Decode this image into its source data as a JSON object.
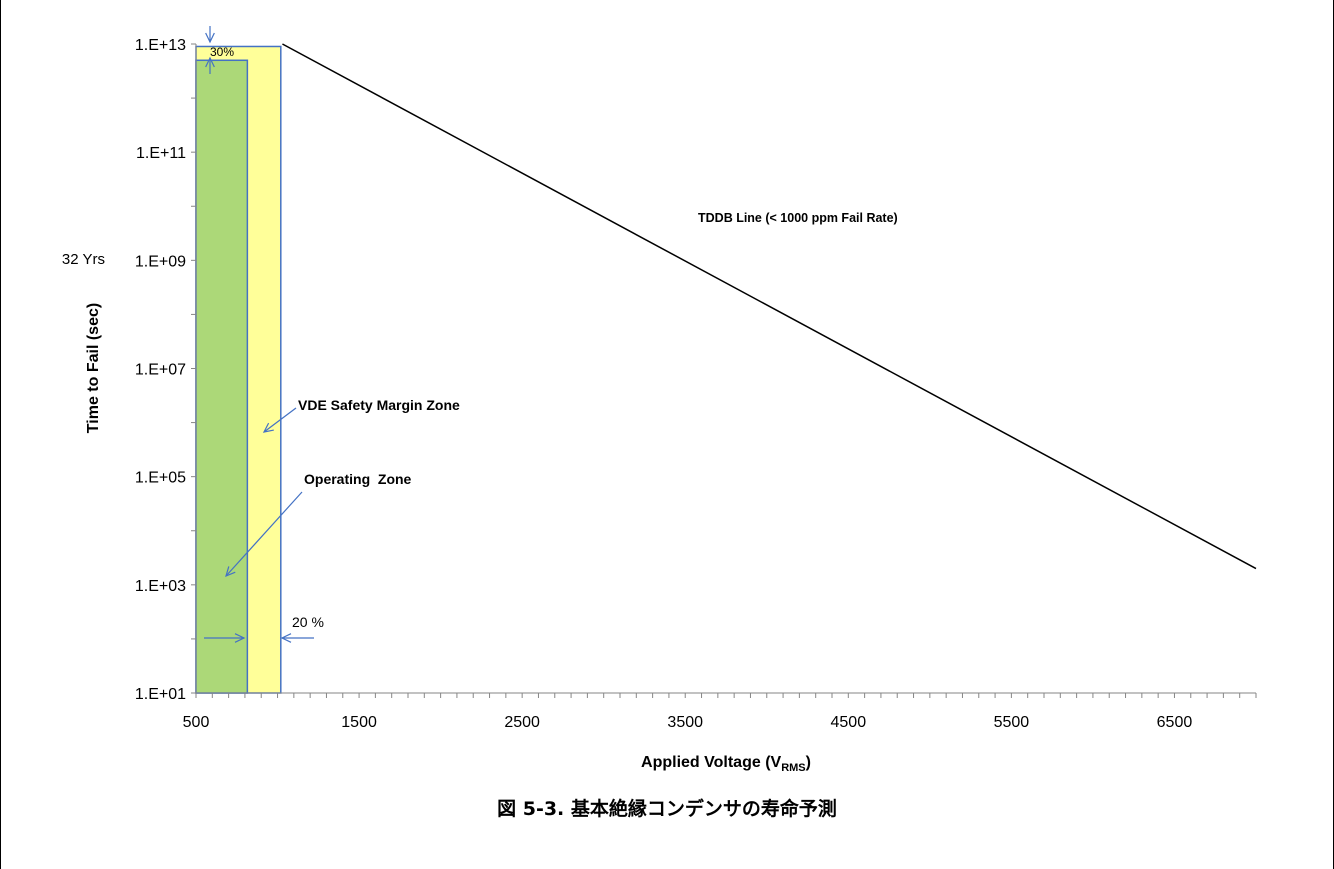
{
  "caption": "図 5-3. 基本絶縁コンデンサの寿命予測",
  "chart_data": {
    "type": "line",
    "x_label_parts": [
      "Applied Voltage (V",
      "RMS",
      ")"
    ],
    "ylabel": "Time to Fail (sec)",
    "xlim": [
      500,
      7000
    ],
    "x_ticks": [
      500,
      1500,
      2500,
      3500,
      4500,
      5500,
      6500
    ],
    "x_minor_step": 100,
    "ylog": true,
    "ylim": [
      10,
      10000000000000
    ],
    "y_ticks": [
      {
        "value": 10,
        "label": "1.E+01"
      },
      {
        "value": 1000,
        "label": "1.E+03"
      },
      {
        "value": 100000,
        "label": "1.E+05"
      },
      {
        "value": 10000000,
        "label": "1.E+07"
      },
      {
        "value": 1000000000,
        "label": "1.E+09"
      },
      {
        "value": 100000000000,
        "label": "1.E+11"
      },
      {
        "value": 10000000000000,
        "label": "1.E+13"
      }
    ],
    "y_minor_per_decade": 1,
    "series": [
      {
        "name": "TDDB Line (< 1000 ppm Fail Rate)",
        "x": [
          1030,
          7000
        ],
        "y": [
          10000000000000,
          2000
        ],
        "color": "#000000"
      }
    ],
    "zones": [
      {
        "name": "VDE Safety Margin Zone",
        "x": [
          500,
          1020
        ],
        "y": [
          10,
          9000000000000
        ],
        "fill": "#ffff99",
        "stroke": "#4472c4"
      },
      {
        "name": "Operating Zone",
        "x": [
          500,
          815
        ],
        "y": [
          10,
          5000000000000
        ],
        "fill": "#acd878",
        "stroke": "#4472c4"
      }
    ],
    "annotations": {
      "pct_top": "30%",
      "pct_side": "20 %",
      "years": "32 Yrs",
      "tddb": "TDDB Line (< 1000 ppm Fail Rate)",
      "vde": "VDE Safety Margin Zone",
      "operating": "Operating  Zone"
    },
    "arrow_color": "#4472c4"
  }
}
